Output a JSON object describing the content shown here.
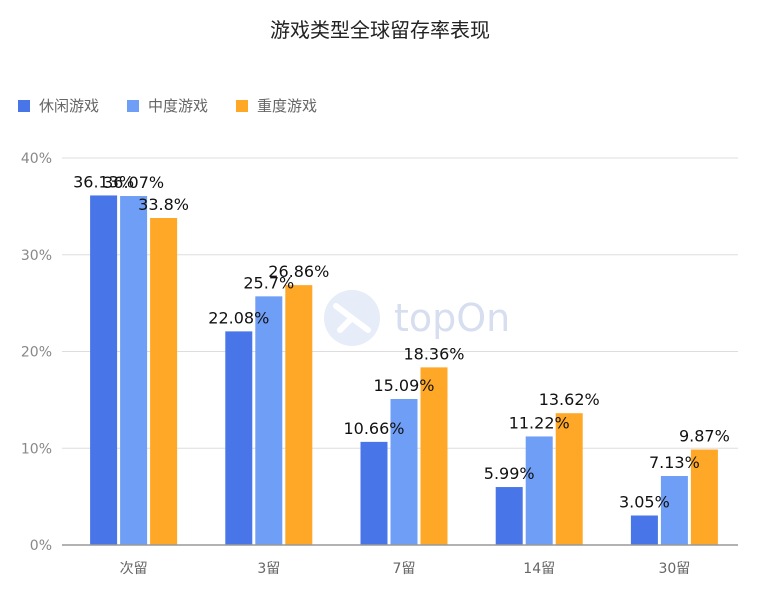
{
  "page": {
    "title": "游戏类型全球留存率表现"
  },
  "colors": {
    "casual": "#4876e8",
    "midcore": "#6e9ef5",
    "hardcore": "#ffa726",
    "grid": "#dddddd",
    "axis": "#999999"
  },
  "watermark": {
    "text": "topOn"
  },
  "chart_data": {
    "type": "bar",
    "title": "游戏类型全球留存率表现",
    "categories": [
      "次留",
      "3留",
      "7留",
      "14留",
      "30留"
    ],
    "series": [
      {
        "name": "休闲游戏",
        "values": [
          36.13,
          22.08,
          10.66,
          5.99,
          3.05
        ],
        "labels": [
          "36.13%",
          "22.08%",
          "10.66%",
          "5.99%",
          "3.05%"
        ],
        "color": "#4876e8"
      },
      {
        "name": "中度游戏",
        "values": [
          36.07,
          25.7,
          15.09,
          11.22,
          7.13
        ],
        "labels": [
          "36.07%",
          "25.7%",
          "15.09%",
          "11.22%",
          "7.13%"
        ],
        "color": "#6e9ef5"
      },
      {
        "name": "重度游戏",
        "values": [
          33.8,
          26.86,
          18.36,
          13.62,
          9.87
        ],
        "labels": [
          "33.8%",
          "26.86%",
          "18.36%",
          "13.62%",
          "9.87%"
        ],
        "color": "#ffa726"
      }
    ],
    "ylim": [
      0,
      40
    ],
    "yticks": [
      "0%",
      "10%",
      "20%",
      "30%",
      "40%"
    ],
    "ytick_values": [
      0,
      10,
      20,
      30,
      40
    ],
    "grid": true,
    "legend": "top-left"
  }
}
